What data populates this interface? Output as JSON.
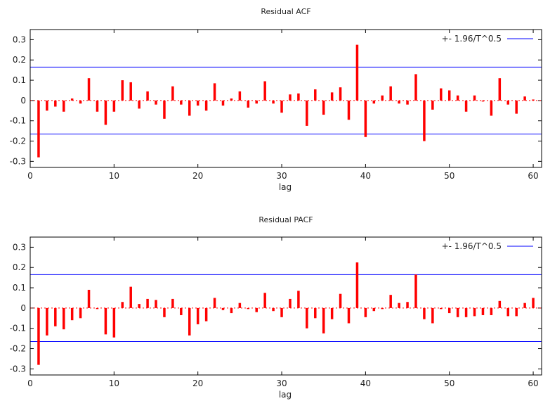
{
  "chart_data": [
    {
      "type": "bar",
      "title": "Residual ACF",
      "xlabel": "lag",
      "ylabel": "",
      "xlim": [
        0,
        61
      ],
      "ylim": [
        -0.33,
        0.35
      ],
      "xticks": [
        0,
        10,
        20,
        30,
        40,
        50,
        60
      ],
      "yticks": [
        -0.3,
        -0.2,
        -0.1,
        0,
        0.1,
        0.2,
        0.3
      ],
      "ytick_labels": [
        "-0.3",
        "-0.2",
        "-0.1",
        "0",
        "0.1",
        "0.2",
        "0.3"
      ],
      "grid": false,
      "legend_position": "top-right",
      "series": [
        {
          "name": "",
          "color": "#ff0000",
          "x": [
            1,
            2,
            3,
            4,
            5,
            6,
            7,
            8,
            9,
            10,
            11,
            12,
            13,
            14,
            15,
            16,
            17,
            18,
            19,
            20,
            21,
            22,
            23,
            24,
            25,
            26,
            27,
            28,
            29,
            30,
            31,
            32,
            33,
            34,
            35,
            36,
            37,
            38,
            39,
            40,
            41,
            42,
            43,
            44,
            45,
            46,
            47,
            48,
            49,
            50,
            51,
            52,
            53,
            54,
            55,
            56,
            57,
            58,
            59,
            60
          ],
          "values": [
            -0.28,
            -0.05,
            -0.03,
            -0.055,
            0.01,
            -0.015,
            0.11,
            -0.055,
            -0.12,
            -0.055,
            0.1,
            0.09,
            -0.04,
            0.045,
            -0.02,
            -0.09,
            0.07,
            -0.02,
            -0.075,
            -0.025,
            -0.05,
            0.085,
            -0.025,
            0.01,
            0.045,
            -0.035,
            -0.015,
            0.095,
            -0.015,
            -0.06,
            0.03,
            0.035,
            -0.125,
            0.055,
            -0.07,
            0.04,
            0.065,
            -0.095,
            0.275,
            -0.18,
            -0.015,
            0.025,
            0.07,
            -0.015,
            -0.02,
            0.13,
            -0.2,
            -0.045,
            0.06,
            0.05,
            0.025,
            -0.055,
            0.025,
            -0.005,
            -0.075,
            0.11,
            -0.02,
            -0.065,
            0.02,
            0.005
          ]
        },
        {
          "name": "+- 1.96/T^0.5",
          "color": "#0000ff",
          "bound": 0.165
        }
      ]
    },
    {
      "type": "bar",
      "title": "Residual PACF",
      "xlabel": "lag",
      "ylabel": "",
      "xlim": [
        0,
        61
      ],
      "ylim": [
        -0.33,
        0.35
      ],
      "xticks": [
        0,
        10,
        20,
        30,
        40,
        50,
        60
      ],
      "yticks": [
        -0.3,
        -0.2,
        -0.1,
        0,
        0.1,
        0.2,
        0.3
      ],
      "ytick_labels": [
        "-0.3",
        "-0.2",
        "-0.1",
        "0",
        "0.1",
        "0.2",
        "0.3"
      ],
      "grid": false,
      "legend_position": "top-right",
      "series": [
        {
          "name": "",
          "color": "#ff0000",
          "x": [
            1,
            2,
            3,
            4,
            5,
            6,
            7,
            8,
            9,
            10,
            11,
            12,
            13,
            14,
            15,
            16,
            17,
            18,
            19,
            20,
            21,
            22,
            23,
            24,
            25,
            26,
            27,
            28,
            29,
            30,
            31,
            32,
            33,
            34,
            35,
            36,
            37,
            38,
            39,
            40,
            41,
            42,
            43,
            44,
            45,
            46,
            47,
            48,
            49,
            50,
            51,
            52,
            53,
            54,
            55,
            56,
            57,
            58,
            59,
            60
          ],
          "values": [
            -0.28,
            -0.135,
            -0.09,
            -0.105,
            -0.06,
            -0.05,
            0.09,
            -0.005,
            -0.13,
            -0.145,
            0.03,
            0.105,
            0.02,
            0.045,
            0.04,
            -0.045,
            0.045,
            -0.035,
            -0.135,
            -0.08,
            -0.065,
            0.05,
            -0.01,
            -0.025,
            0.025,
            -0.005,
            -0.02,
            0.075,
            -0.015,
            -0.045,
            0.045,
            0.085,
            -0.1,
            -0.05,
            -0.125,
            -0.055,
            0.07,
            -0.075,
            0.225,
            -0.045,
            -0.015,
            -0.005,
            0.065,
            0.025,
            0.03,
            0.165,
            -0.055,
            -0.075,
            -0.005,
            -0.025,
            -0.045,
            -0.045,
            -0.04,
            -0.035,
            -0.035,
            0.035,
            -0.04,
            -0.04,
            0.025,
            0.05
          ]
        },
        {
          "name": "+- 1.96/T^0.5",
          "color": "#0000ff",
          "bound": 0.165
        }
      ]
    }
  ]
}
